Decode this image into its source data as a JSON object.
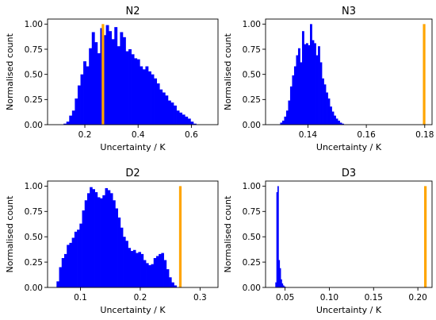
{
  "chart_data": [
    {
      "type": "bar",
      "title": "N2",
      "xlabel": "Uncertainty / K",
      "ylabel": "Normalised count",
      "xlim": [
        0.06,
        0.7
      ],
      "ylim": [
        0,
        1.05
      ],
      "xticks": [
        0.2,
        0.4,
        0.6
      ],
      "xtick_labels": [
        "0.2",
        "0.4",
        "0.6"
      ],
      "yticks": [
        0.0,
        0.25,
        0.5,
        0.75,
        1.0
      ],
      "ytick_labels": [
        "0.00",
        "0.25",
        "0.50",
        "0.75",
        "1.00"
      ],
      "bin_start": 0.12,
      "bin_width": 0.0106,
      "values": [
        0.01,
        0.03,
        0.09,
        0.14,
        0.26,
        0.39,
        0.5,
        0.63,
        0.58,
        0.76,
        0.92,
        0.82,
        0.71,
        0.96,
        0.89,
        0.99,
        0.93,
        0.85,
        0.97,
        0.78,
        0.92,
        0.87,
        0.73,
        0.75,
        0.7,
        0.66,
        0.65,
        0.58,
        0.55,
        0.58,
        0.53,
        0.5,
        0.46,
        0.41,
        0.35,
        0.32,
        0.29,
        0.24,
        0.22,
        0.19,
        0.14,
        0.12,
        0.1,
        0.08,
        0.06,
        0.03,
        0.01
      ],
      "marker_x": 0.268,
      "colors": {
        "bars": "#0000ff",
        "marker": "#ffa500"
      }
    },
    {
      "type": "bar",
      "title": "N3",
      "xlabel": "Uncertainty / K",
      "ylabel": "Normalised count",
      "xlim": [
        0.1255,
        0.1825
      ],
      "ylim": [
        0,
        1.05
      ],
      "xticks": [
        0.14,
        0.16,
        0.18
      ],
      "xtick_labels": [
        "0.14",
        "0.16",
        "0.18"
      ],
      "yticks": [
        0.0,
        0.25,
        0.5,
        0.75,
        1.0
      ],
      "ytick_labels": [
        "0.00",
        "0.25",
        "0.50",
        "0.75",
        "1.00"
      ],
      "bin_start": 0.1305,
      "bin_width": 0.00068,
      "values": [
        0.02,
        0.04,
        0.08,
        0.14,
        0.24,
        0.38,
        0.49,
        0.58,
        0.69,
        0.76,
        0.62,
        0.93,
        0.8,
        0.81,
        0.79,
        1.0,
        0.84,
        0.81,
        0.69,
        0.78,
        0.62,
        0.46,
        0.4,
        0.32,
        0.26,
        0.18,
        0.13,
        0.09,
        0.06,
        0.04,
        0.02,
        0.01
      ],
      "marker_x": 0.1798,
      "colors": {
        "bars": "#0000ff",
        "marker": "#ffa500"
      }
    },
    {
      "type": "bar",
      "title": "D2",
      "xlabel": "Uncertainty / K",
      "ylabel": "Normalised count",
      "xlim": [
        0.045,
        0.33
      ],
      "ylim": [
        0,
        1.05
      ],
      "xticks": [
        0.1,
        0.2,
        0.3
      ],
      "xtick_labels": [
        "0.1",
        "0.2",
        "0.3"
      ],
      "yticks": [
        0.0,
        0.25,
        0.5,
        0.75,
        1.0
      ],
      "ytick_labels": [
        "0.00",
        "0.25",
        "0.50",
        "0.75",
        "1.00"
      ],
      "bin_start": 0.06,
      "bin_width": 0.00427,
      "values": [
        0.06,
        0.2,
        0.29,
        0.33,
        0.42,
        0.44,
        0.49,
        0.55,
        0.57,
        0.63,
        0.76,
        0.86,
        0.93,
        0.99,
        0.97,
        0.94,
        0.89,
        0.88,
        0.91,
        0.98,
        0.96,
        0.93,
        0.86,
        0.78,
        0.69,
        0.59,
        0.5,
        0.46,
        0.39,
        0.36,
        0.37,
        0.34,
        0.35,
        0.33,
        0.27,
        0.24,
        0.22,
        0.23,
        0.29,
        0.31,
        0.33,
        0.34,
        0.27,
        0.18,
        0.1,
        0.05,
        0.02
      ],
      "marker_x": 0.267,
      "colors": {
        "bars": "#0000ff",
        "marker": "#ffa500"
      }
    },
    {
      "type": "bar",
      "title": "D3",
      "xlabel": "Uncertainty / K",
      "ylabel": "Normalised count",
      "xlim": [
        0.028,
        0.216
      ],
      "ylim": [
        0,
        1.05
      ],
      "xticks": [
        0.05,
        0.1,
        0.15,
        0.2
      ],
      "xtick_labels": [
        "0.05",
        "0.10",
        "0.15",
        "0.20"
      ],
      "yticks": [
        0.0,
        0.25,
        0.5,
        0.75,
        1.0
      ],
      "ytick_labels": [
        "0.00",
        "0.25",
        "0.50",
        "0.75",
        "1.00"
      ],
      "bin_start": 0.039,
      "bin_width": 0.00122,
      "values": [
        0.05,
        0.94,
        1.0,
        0.27,
        0.19,
        0.08,
        0.04,
        0.02,
        0.01,
        0.005
      ],
      "marker_x": 0.2085,
      "colors": {
        "bars": "#0000ff",
        "marker": "#ffa500"
      }
    }
  ]
}
